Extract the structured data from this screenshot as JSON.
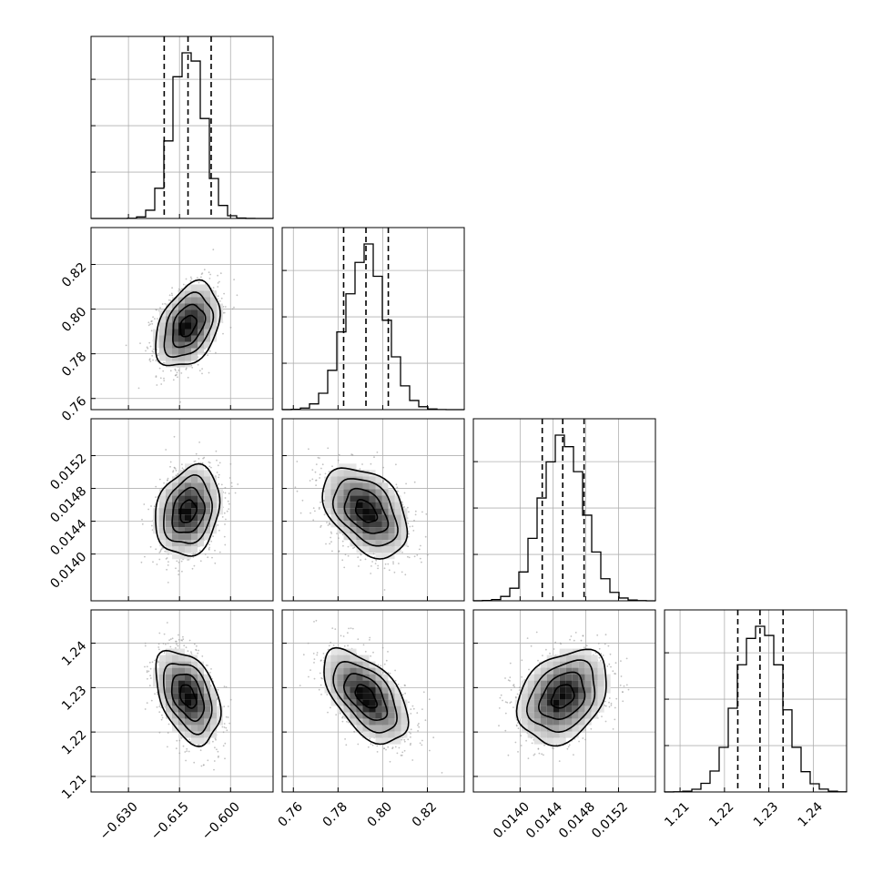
{
  "chart_data": {
    "type": "corner",
    "grid": true,
    "parameters": [
      {
        "mean": -0.6125,
        "std": 0.0045,
        "range": [
          -0.641,
          -0.5875
        ],
        "ticks": [
          -0.63,
          -0.615,
          -0.6
        ],
        "tick_labels": [
          "−0.630",
          "−0.615",
          "−0.600"
        ],
        "quantiles": [
          -0.6195,
          -0.6125,
          -0.6057
        ]
      },
      {
        "mean": 0.7925,
        "std": 0.009,
        "range": [
          0.755,
          0.8365
        ],
        "ticks": [
          0.76,
          0.78,
          0.8,
          0.82
        ],
        "tick_labels": [
          "0.76",
          "0.78",
          "0.80",
          "0.82"
        ],
        "quantiles": [
          0.7825,
          0.7925,
          0.8025
        ]
      },
      {
        "mean": 0.01452,
        "std": 0.00026,
        "range": [
          0.01343,
          0.01565
        ],
        "ticks": [
          0.014,
          0.0144,
          0.0148,
          0.0152
        ],
        "tick_labels": [
          "0.0140",
          "0.0144",
          "0.0148",
          "0.0152"
        ],
        "quantiles": [
          0.01427,
          0.01452,
          0.01478
        ]
      },
      {
        "mean": 1.228,
        "std": 0.005,
        "range": [
          1.2065,
          1.2475
        ],
        "ticks": [
          1.21,
          1.22,
          1.23,
          1.24
        ],
        "tick_labels": [
          "1.21",
          "1.22",
          "1.23",
          "1.24"
        ],
        "quantiles": [
          1.223,
          1.228,
          1.2332
        ]
      }
    ],
    "correlations": [
      {
        "row": 1,
        "col": 0,
        "rho": 0.35
      },
      {
        "row": 2,
        "col": 0,
        "rho": 0.2
      },
      {
        "row": 2,
        "col": 1,
        "rho": -0.4
      },
      {
        "row": 3,
        "col": 0,
        "rho": -0.4
      },
      {
        "row": 3,
        "col": 1,
        "rho": -0.55
      },
      {
        "row": 3,
        "col": 2,
        "rho": 0.3
      }
    ],
    "histogram_bins": 20,
    "contour_levels_sigma": [
      0.5,
      1.0,
      1.5,
      2.0
    ]
  }
}
